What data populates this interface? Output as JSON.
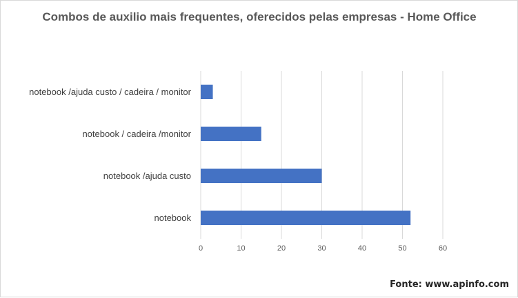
{
  "chart_data": {
    "type": "bar",
    "orientation": "horizontal",
    "title": "Combos de auxilio mais frequentes, oferecidos pelas empresas - Home Office",
    "categories": [
      "notebook /ajuda custo / cadeira / monitor",
      "notebook / cadeira /monitor",
      "notebook /ajuda custo",
      "notebook"
    ],
    "values": [
      3,
      15,
      30,
      52
    ],
    "xlim": [
      0,
      60
    ],
    "xticks": [
      0,
      10,
      20,
      30,
      40,
      50,
      60
    ],
    "grid": true,
    "bar_color": "#4472c4"
  },
  "footer": {
    "source": "Fonte: www.apinfo.com"
  }
}
